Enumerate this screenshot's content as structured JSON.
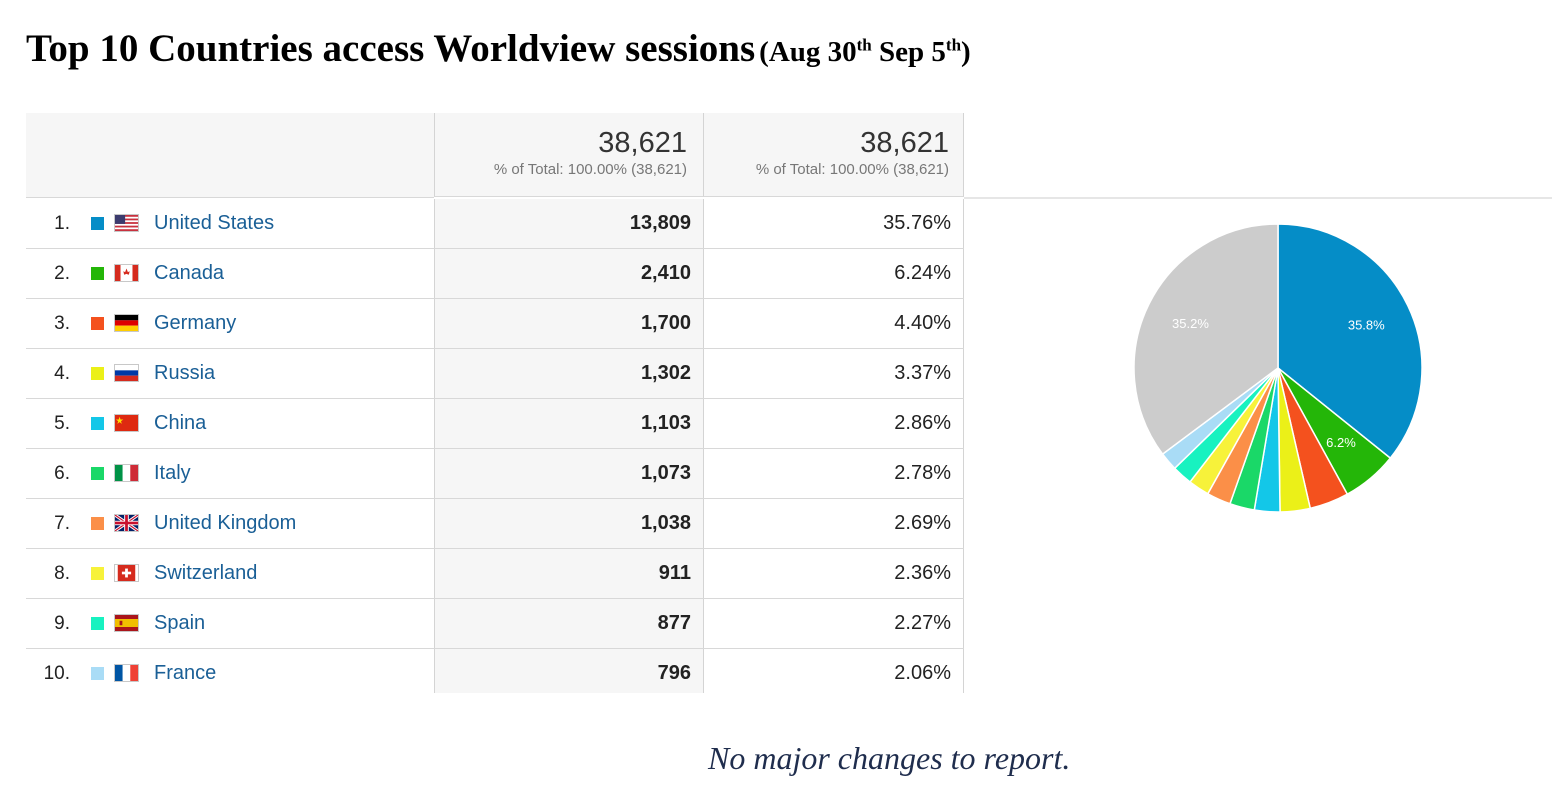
{
  "title": {
    "main": "Top 10 Countries access Worldview sessions",
    "sub_prefix": "(Aug 30",
    "sub_sup1": "th",
    "sub_mid": " Sep 5",
    "sub_sup2": "th",
    "sub_suffix": ")"
  },
  "header": {
    "sessions_total": "38,621",
    "sessions_pct": "% of Total: 100.00% (38,621)",
    "share_total": "38,621",
    "share_pct": "% of Total: 100.00% (38,621)"
  },
  "rows": [
    {
      "index": "1.",
      "country": "United States",
      "sessions": "13,809",
      "pct": "35.76%",
      "color": "#058dc7",
      "flag": "us-flag-icon"
    },
    {
      "index": "2.",
      "country": "Canada",
      "sessions": "2,410",
      "pct": "6.24%",
      "color": "#24b608",
      "flag": "canada-flag-icon"
    },
    {
      "index": "3.",
      "country": "Germany",
      "sessions": "1,700",
      "pct": "4.40%",
      "color": "#f4511e",
      "flag": "germany-flag-icon"
    },
    {
      "index": "4.",
      "country": "Russia",
      "sessions": "1,302",
      "pct": "3.37%",
      "color": "#ebf018",
      "flag": "russia-flag-icon"
    },
    {
      "index": "5.",
      "country": "China",
      "sessions": "1,103",
      "pct": "2.86%",
      "color": "#13c7e8",
      "flag": "china-flag-icon"
    },
    {
      "index": "6.",
      "country": "Italy",
      "sessions": "1,073",
      "pct": "2.78%",
      "color": "#1ad868",
      "flag": "italy-flag-icon"
    },
    {
      "index": "7.",
      "country": "United Kingdom",
      "sessions": "1,038",
      "pct": "2.69%",
      "color": "#fb8f48",
      "flag": "uk-flag-icon"
    },
    {
      "index": "8.",
      "country": "Switzerland",
      "sessions": "911",
      "pct": "2.36%",
      "color": "#f7f23a",
      "flag": "switzerland-flag-icon"
    },
    {
      "index": "9.",
      "country": "Spain",
      "sessions": "877",
      "pct": "2.27%",
      "color": "#18f2c0",
      "flag": "spain-flag-icon"
    },
    {
      "index": "10.",
      "country": "France",
      "sessions": "796",
      "pct": "2.06%",
      "color": "#a9dcf6",
      "flag": "france-flag-icon"
    }
  ],
  "chart_data": {
    "type": "pie",
    "slices": [
      {
        "label": "United States",
        "value": 35.76,
        "color": "#058dc7",
        "data_label": "35.8%"
      },
      {
        "label": "Canada",
        "value": 6.24,
        "color": "#24b608",
        "data_label": "6.2%"
      },
      {
        "label": "Germany",
        "value": 4.4,
        "color": "#f4511e",
        "data_label": ""
      },
      {
        "label": "Russia",
        "value": 3.37,
        "color": "#ebf018",
        "data_label": ""
      },
      {
        "label": "China",
        "value": 2.86,
        "color": "#13c7e8",
        "data_label": ""
      },
      {
        "label": "Italy",
        "value": 2.78,
        "color": "#1ad868",
        "data_label": ""
      },
      {
        "label": "United Kingdom",
        "value": 2.69,
        "color": "#fb8f48",
        "data_label": ""
      },
      {
        "label": "Switzerland",
        "value": 2.36,
        "color": "#f7f23a",
        "data_label": ""
      },
      {
        "label": "Spain",
        "value": 2.27,
        "color": "#18f2c0",
        "data_label": ""
      },
      {
        "label": "France",
        "value": 2.06,
        "color": "#a9dcf6",
        "data_label": ""
      },
      {
        "label": "",
        "value": 35.2,
        "color": "#cccccc",
        "data_label": "35.2%"
      }
    ]
  },
  "note": "No major changes to report."
}
